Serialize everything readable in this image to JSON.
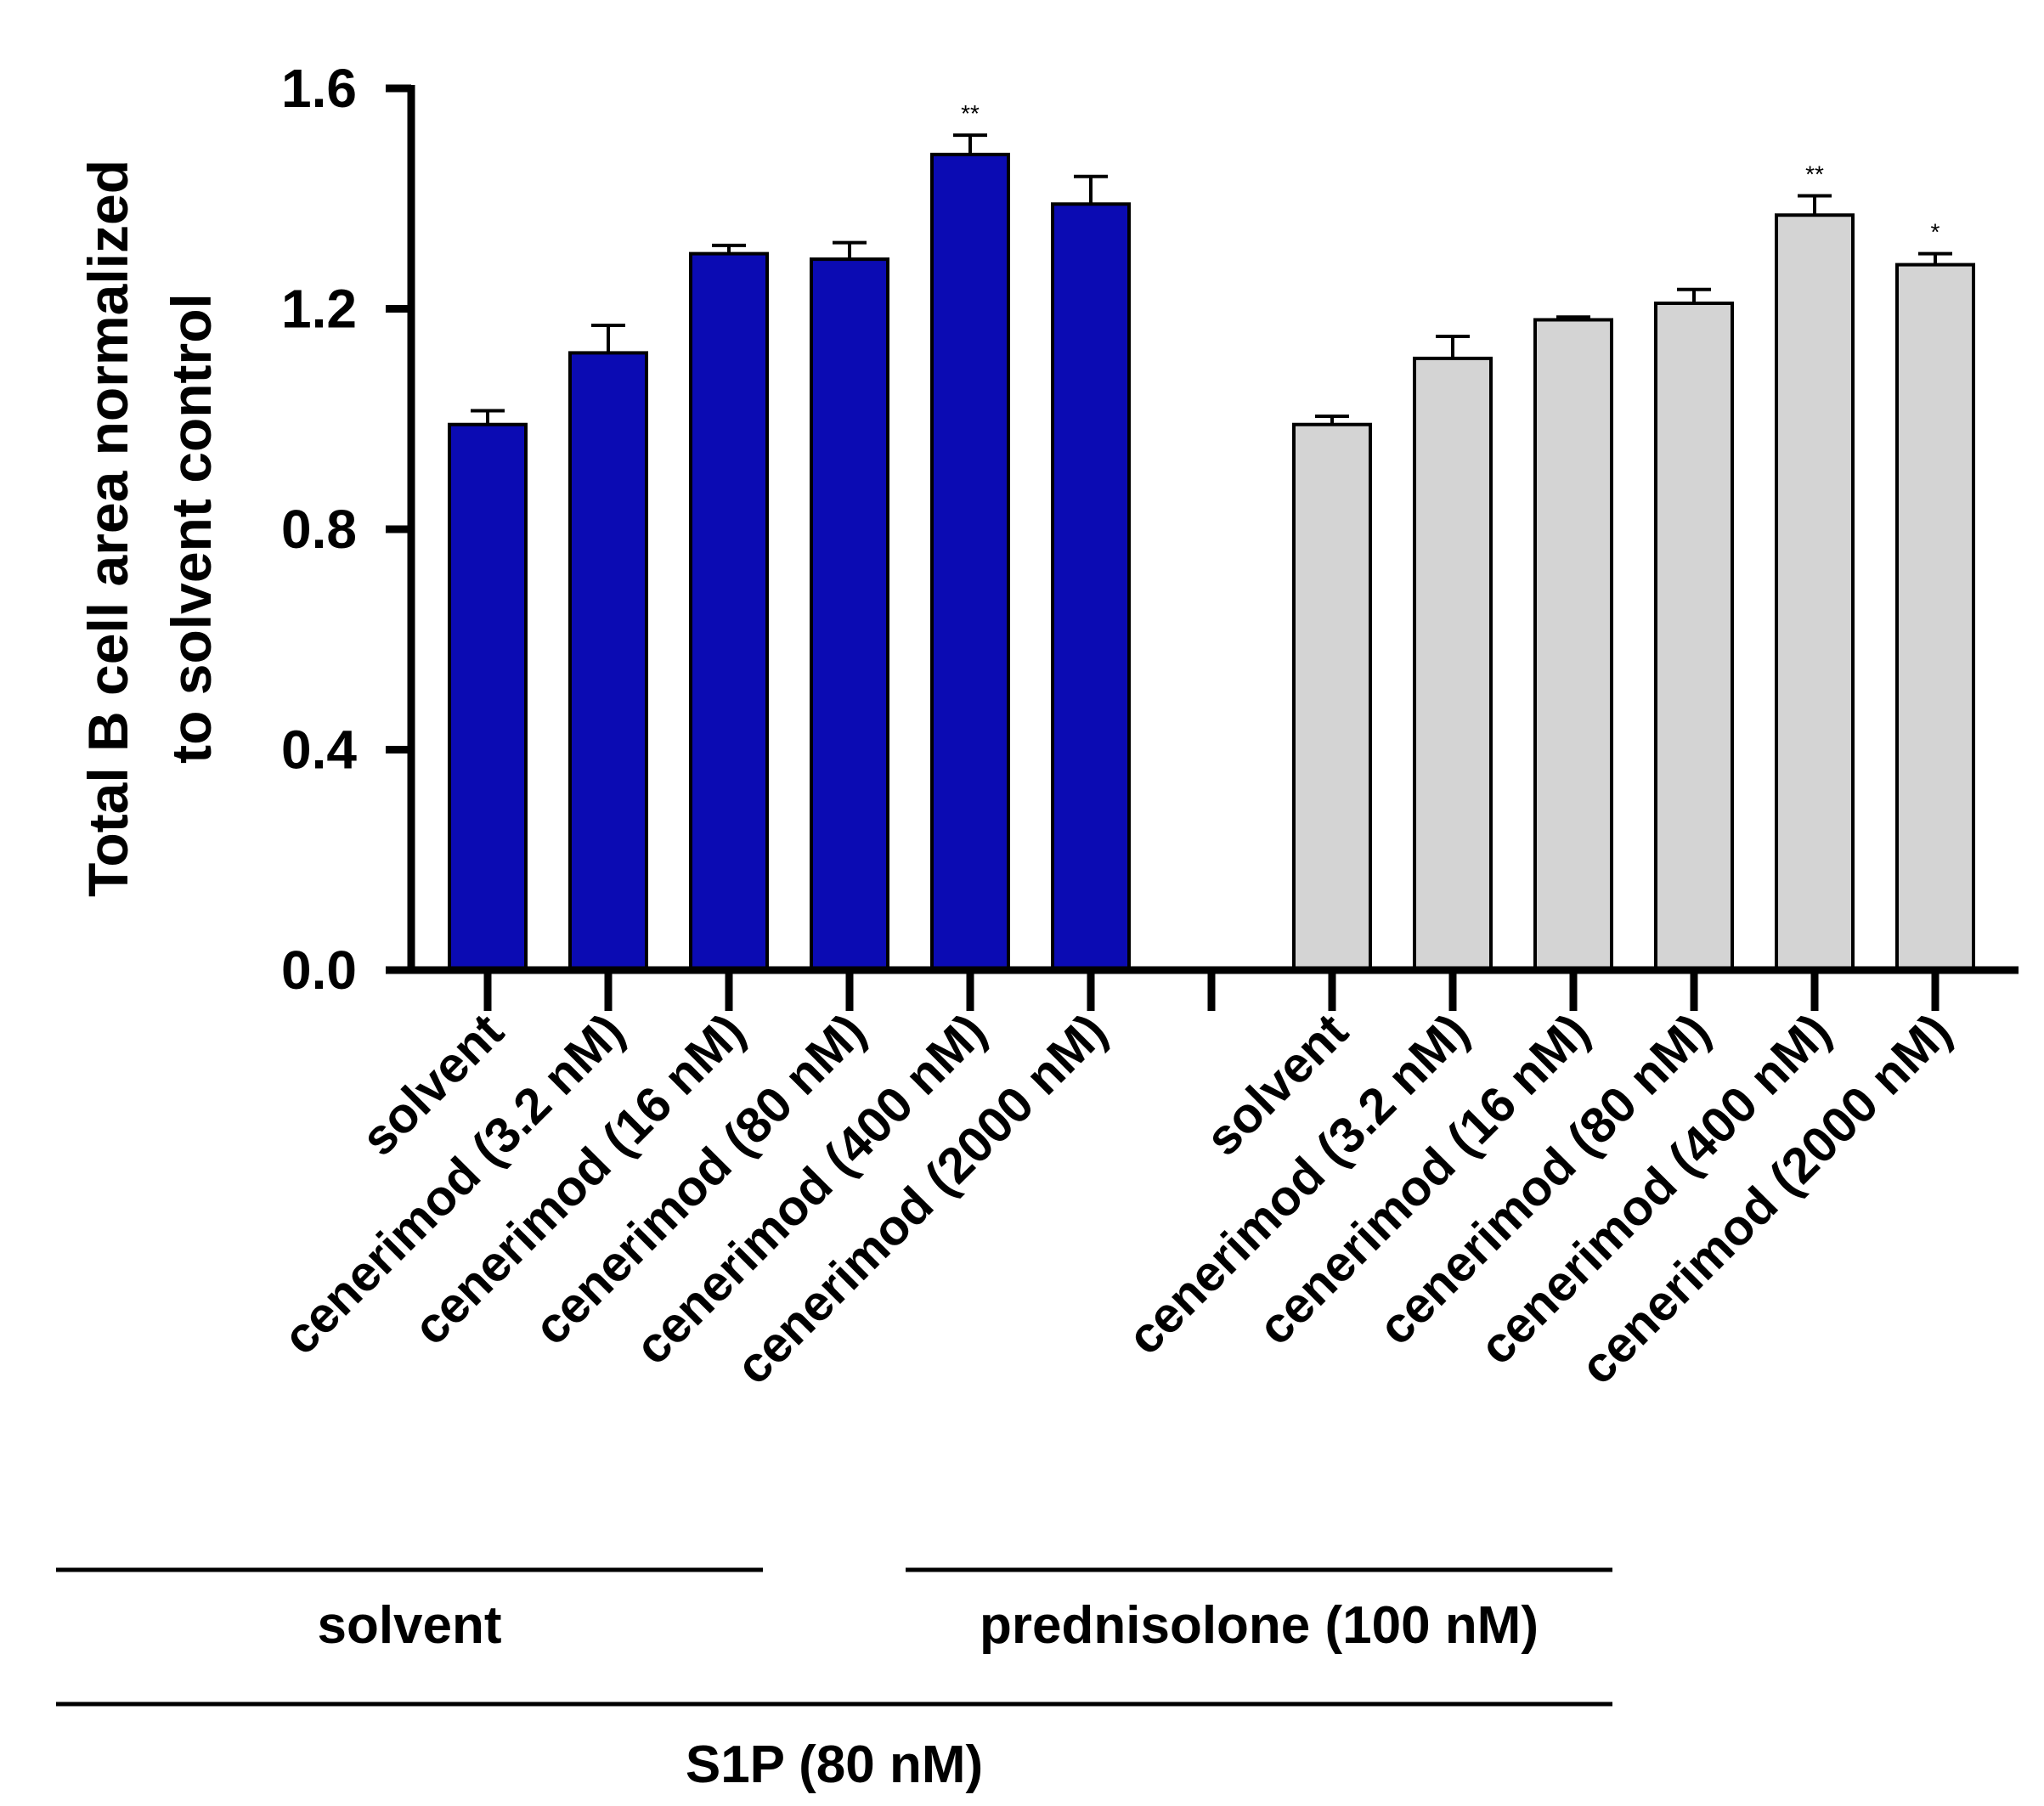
{
  "chart_data": {
    "type": "bar",
    "title": "",
    "xlabel": "",
    "ylabel": "Total B cell area normalized to solvent control",
    "ylabel_lines": [
      "Total B cell area normalized",
      "to solvent control"
    ],
    "ylim": [
      0,
      1.6
    ],
    "yticks": [
      0.0,
      0.4,
      0.8,
      1.2,
      1.6
    ],
    "ytick_labels": [
      "0.0",
      "0.4",
      "0.8",
      "1.2",
      "1.6"
    ],
    "grid": false,
    "categories": [
      "solvent",
      "cenerimod (3.2 nM)",
      "cenerimod (16 nM)",
      "cenerimod (80 nM)",
      "cenerimod (400 nM)",
      "cenerimod (2000 nM)"
    ],
    "series": [
      {
        "name": "solvent",
        "color": "#0b0bb3",
        "values": [
          0.99,
          1.12,
          1.3,
          1.29,
          1.48,
          1.39
        ],
        "errors": [
          0.025,
          0.05,
          0.015,
          0.03,
          0.035,
          0.05
        ],
        "annotations": [
          "",
          "",
          "",
          "",
          "**",
          ""
        ]
      },
      {
        "name": "prednisolone (100 nM)",
        "color": "#d4d4d4",
        "values": [
          0.99,
          1.11,
          1.18,
          1.21,
          1.37,
          1.28
        ],
        "errors": [
          0.015,
          0.04,
          0.005,
          0.025,
          0.035,
          0.02
        ],
        "annotations": [
          "",
          "",
          "",
          "",
          "**",
          "*"
        ]
      }
    ],
    "group_labels": {
      "treatment": [
        "solvent",
        "prednisolone (100 nM)"
      ],
      "stimulus": "S1P (80 nM)"
    }
  }
}
